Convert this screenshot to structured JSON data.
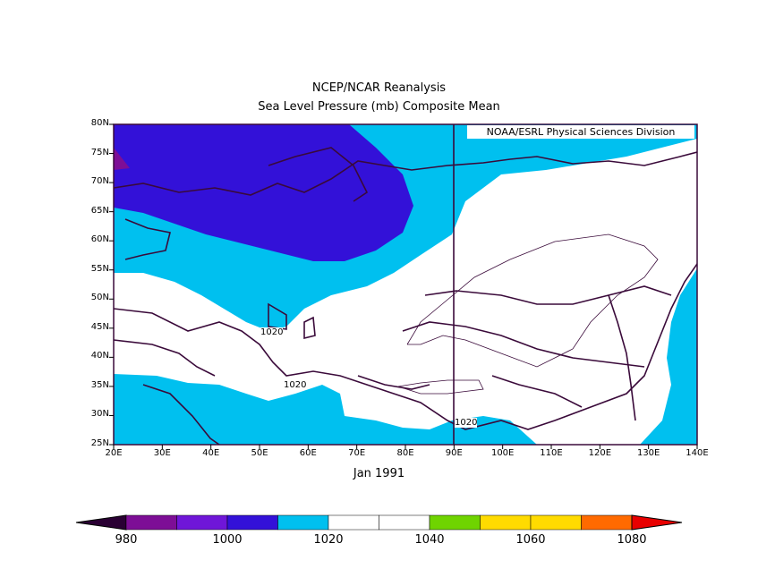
{
  "title": "NCEP/NCAR Reanalysis",
  "subtitle": "Sea Level Pressure (mb) Composite Mean",
  "date_label": "Jan 1991",
  "credit": "NOAA/ESRL Physical Sciences Division",
  "lat_labels": [
    "80N",
    "75N",
    "70N",
    "65N",
    "60N",
    "55N",
    "50N",
    "45N",
    "40N",
    "35N",
    "30N",
    "25N"
  ],
  "lon_labels": [
    "20E",
    "30E",
    "40E",
    "50E",
    "60E",
    "70E",
    "80E",
    "90E",
    "100E",
    "110E",
    "120E",
    "130E",
    "140E"
  ],
  "contour_labels": [
    "1020",
    "1020",
    "1020"
  ],
  "colorbar": {
    "colors": [
      "#2a0033",
      "#7d0e96",
      "#6f16d8",
      "#3311d8",
      "#00c0ef",
      "#ffffff",
      "#ffffff",
      "#6fd400",
      "#ffdb00",
      "#ffdb00",
      "#ff6a00",
      "#e80000"
    ],
    "labels": [
      "980",
      "1000",
      "1020",
      "1040",
      "1060",
      "1080"
    ]
  },
  "map": {
    "extent": {
      "lon": [
        20,
        140
      ],
      "lat": [
        25,
        80
      ]
    },
    "fill_colors": {
      "below_1000": "#3311d8",
      "1000_1020": "#00c0ef",
      "above_1020": "#ffffff",
      "min_pocket": "#7d0e96"
    },
    "coastline_color": "#3a0a3a",
    "contour_color": "#3a0a3a"
  }
}
